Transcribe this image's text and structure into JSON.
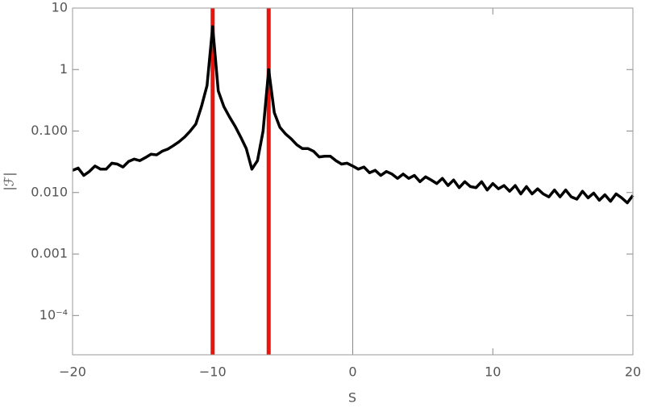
{
  "chart_data": {
    "type": "line",
    "xlabel": "S",
    "ylabel": "|ℱ|",
    "log_y": true,
    "color": "#000000",
    "vlines": [
      -10,
      -6
    ],
    "vline_color": "#e8150f",
    "xlim": [
      -20,
      20
    ],
    "ylim": [
      2.3e-05,
      10
    ],
    "xticks": [
      {
        "value": -20,
        "label": "−20"
      },
      {
        "value": -10,
        "label": "−10"
      },
      0,
      10,
      20
    ],
    "yticks": [
      {
        "value": 0.0001,
        "label": "10⁻⁴"
      },
      0.001,
      {
        "value": 0.01,
        "label": "0.010"
      },
      {
        "value": 0.1,
        "label": "0.100"
      },
      1,
      10
    ],
    "x": [
      -20,
      -19.6,
      -19.2,
      -18.8,
      -18.4,
      -18,
      -17.6,
      -17.2,
      -16.8,
      -16.4,
      -16,
      -15.6,
      -15.2,
      -14.8,
      -14.4,
      -14,
      -13.6,
      -13.2,
      -12.8,
      -12.4,
      -12,
      -11.6,
      -11.2,
      -10.8,
      -10.4,
      -10,
      -9.6,
      -9.2,
      -8.8,
      -8.4,
      -8,
      -7.6,
      -7.2,
      -6.8,
      -6.4,
      -6,
      -5.6,
      -5.2,
      -4.8,
      -4.4,
      -4,
      -3.6,
      -3.2,
      -2.8,
      -2.4,
      -2,
      -1.6,
      -1.2,
      -0.8,
      -0.4,
      0,
      0.4,
      0.8,
      1.2,
      1.6,
      2,
      2.4,
      2.8,
      3.2,
      3.6,
      4,
      4.4,
      4.8,
      5.2,
      5.6,
      6,
      6.4,
      6.8,
      7.2,
      7.6,
      8,
      8.4,
      8.8,
      9.2,
      9.6,
      10,
      10.4,
      10.8,
      11.2,
      11.6,
      12,
      12.4,
      12.8,
      13.2,
      13.6,
      14,
      14.4,
      14.8,
      15.2,
      15.6,
      16,
      16.4,
      16.8,
      17.2,
      17.6,
      18,
      18.4,
      18.8,
      19.2,
      19.6,
      20
    ],
    "values": [
      0.023,
      0.025,
      0.019,
      0.022,
      0.027,
      0.024,
      0.024,
      0.03,
      0.029,
      0.026,
      0.032,
      0.035,
      0.033,
      0.037,
      0.042,
      0.041,
      0.047,
      0.051,
      0.058,
      0.067,
      0.08,
      0.1,
      0.13,
      0.25,
      0.55,
      5,
      0.45,
      0.25,
      0.17,
      0.12,
      0.08,
      0.052,
      0.024,
      0.033,
      0.1,
      1,
      0.2,
      0.115,
      0.09,
      0.075,
      0.06,
      0.052,
      0.052,
      0.047,
      0.038,
      0.039,
      0.039,
      0.033,
      0.029,
      0.03,
      0.027,
      0.024,
      0.026,
      0.021,
      0.023,
      0.019,
      0.022,
      0.02,
      0.017,
      0.02,
      0.017,
      0.019,
      0.015,
      0.018,
      0.016,
      0.014,
      0.017,
      0.013,
      0.016,
      0.012,
      0.015,
      0.0125,
      0.012,
      0.015,
      0.011,
      0.014,
      0.0115,
      0.013,
      0.0105,
      0.013,
      0.0095,
      0.0125,
      0.0095,
      0.0115,
      0.0095,
      0.0085,
      0.011,
      0.0085,
      0.011,
      0.0085,
      0.0078,
      0.0105,
      0.0082,
      0.0098,
      0.0075,
      0.0092,
      0.0072,
      0.0095,
      0.0082,
      0.0068,
      0.009
    ]
  }
}
